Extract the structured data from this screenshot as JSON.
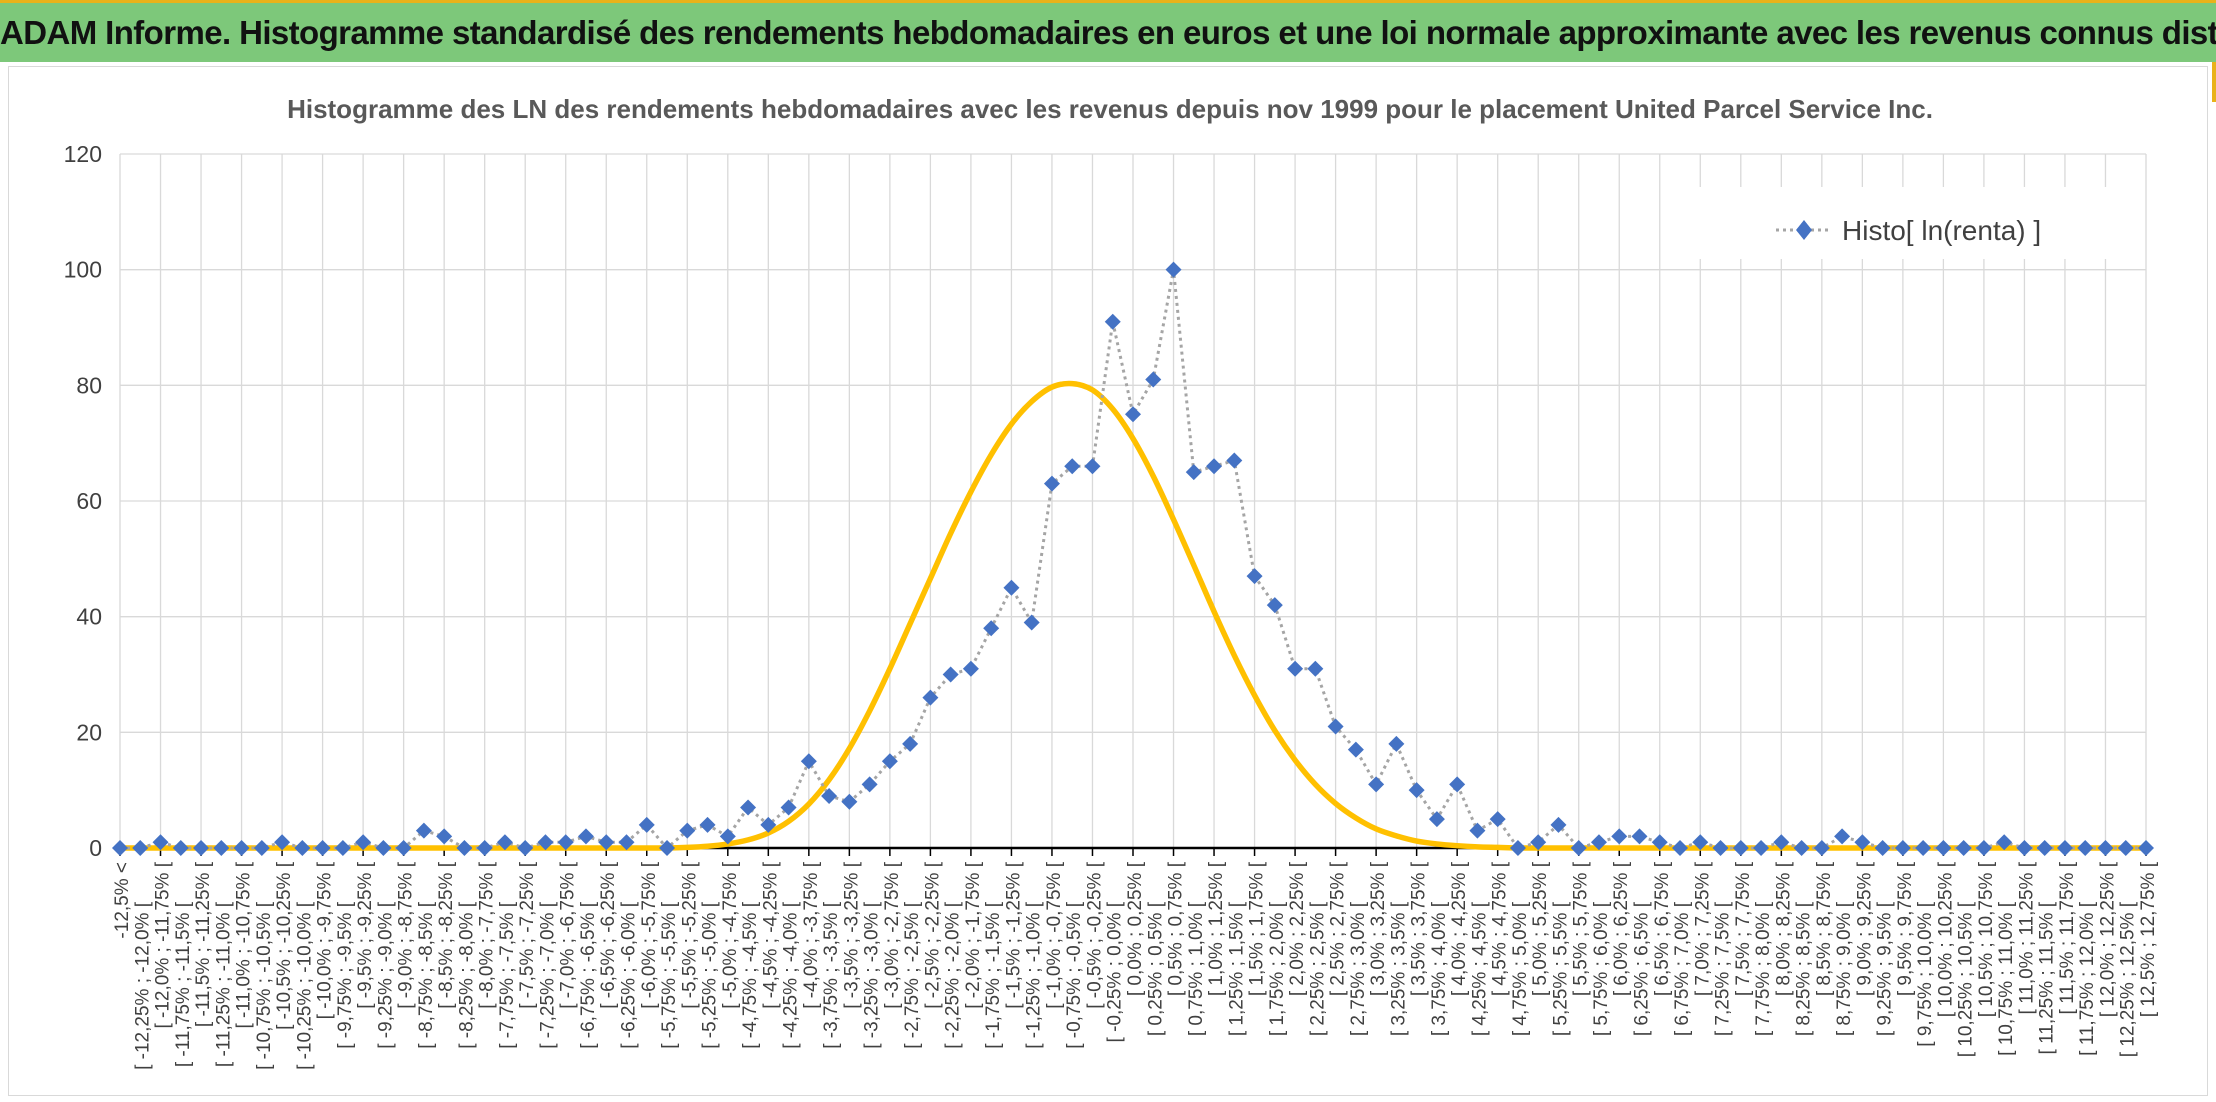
{
  "banner": {
    "title": "ADAM Informe. Histogramme standardisé des rendements hebdomadaires en euros et une loi normale approximante avec les revenus connus distribués"
  },
  "colors": {
    "banner_bg": "#7dc87a",
    "banner_accent": "#e9b21a",
    "histogram_marker": "#4472c4",
    "histogram_line": "#a5a5a5",
    "normal_curve": "#ffc000",
    "grid": "#d9d9d9"
  },
  "chart_data": {
    "type": "line",
    "title": "Histogramme des LN des rendements hebdomadaires avec les revenus depuis nov 1999 pour le placement United Parcel Service Inc.",
    "xlabel": "",
    "ylabel": "",
    "ylim": [
      0,
      120
    ],
    "yticks": [
      0,
      20,
      40,
      60,
      80,
      100,
      120
    ],
    "grid": true,
    "legend_position": "top-right",
    "categories": [
      "-12,5% <",
      "[ -12,25% ; -12,0% [",
      "[ -12,0% ; -11,75% [",
      "[ -11,75% ; -11,5% [",
      "[ -11,5% ; -11,25% [",
      "[ -11,25% ; -11,0% [",
      "[ -11,0% ; -10,75% [",
      "[ -10,75% ; -10,5% [",
      "[ -10,5% ; -10,25% [",
      "[ -10,25% ; -10,0% [",
      "[ -10,0% ; -9,75% [",
      "[ -9,75% ; -9,5% [",
      "[ -9,5% ; -9,25% [",
      "[ -9,25% ; -9,0% [",
      "[ -9,0% ; -8,75% [",
      "[ -8,75% ; -8,5% [",
      "[ -8,5% ; -8,25% [",
      "[ -8,25% ; -8,0% [",
      "[ -8,0% ; -7,75% [",
      "[ -7,75% ; -7,5% [",
      "[ -7,5% ; -7,25% [",
      "[ -7,25% ; -7,0% [",
      "[ -7,0% ; -6,75% [",
      "[ -6,75% ; -6,5% [",
      "[ -6,5% ; -6,25% [",
      "[ -6,25% ; -6,0% [",
      "[ -6,0% ; -5,75% [",
      "[ -5,75% ; -5,5% [",
      "[ -5,5% ; -5,25% [",
      "[ -5,25% ; -5,0% [",
      "[ -5,0% ; -4,75% [",
      "[ -4,75% ; -4,5% [",
      "[ -4,5% ; -4,25% [",
      "[ -4,25% ; -4,0% [",
      "[ -4,0% ; -3,75% [",
      "[ -3,75% ; -3,5% [",
      "[ -3,5% ; -3,25% [",
      "[ -3,25% ; -3,0% [",
      "[ -3,0% ; -2,75% [",
      "[ -2,75% ; -2,5% [",
      "[ -2,5% ; -2,25% [",
      "[ -2,25% ; -2,0% [",
      "[ -2,0% ; -1,75% [",
      "[ -1,75% ; -1,5% [",
      "[ -1,5% ; -1,25% [",
      "[ -1,25% ; -1,0% [",
      "[ -1,0% ; -0,75% [",
      "[ -0,75% ; -0,5% [",
      "[ -0,5% ; -0,25% [",
      "[ -0,25% ; 0,0% [",
      "[ 0,0% ; 0,25% [",
      "[ 0,25% ; 0,5% [",
      "[ 0,5% ; 0,75% [",
      "[ 0,75% ; 1,0% [",
      "[ 1,0% ; 1,25% [",
      "[ 1,25% ; 1,5% [",
      "[ 1,5% ; 1,75% [",
      "[ 1,75% ; 2,0% [",
      "[ 2,0% ; 2,25% [",
      "[ 2,25% ; 2,5% [",
      "[ 2,5% ; 2,75% [",
      "[ 2,75% ; 3,0% [",
      "[ 3,0% ; 3,25% [",
      "[ 3,25% ; 3,5% [",
      "[ 3,5% ; 3,75% [",
      "[ 3,75% ; 4,0% [",
      "[ 4,0% ; 4,25% [",
      "[ 4,25% ; 4,5% [",
      "[ 4,5% ; 4,75% [",
      "[ 4,75% ; 5,0% [",
      "[ 5,0% ; 5,25% [",
      "[ 5,25% ; 5,5% [",
      "[ 5,5% ; 5,75% [",
      "[ 5,75% ; 6,0% [",
      "[ 6,0% ; 6,25% [",
      "[ 6,25% ; 6,5% [",
      "[ 6,5% ; 6,75% [",
      "[ 6,75% ; 7,0% [",
      "[ 7,0% ; 7,25% [",
      "[ 7,25% ; 7,5% [",
      "[ 7,5% ; 7,75% [",
      "[ 7,75% ; 8,0% [",
      "[ 8,0% ; 8,25% [",
      "[ 8,25% ; 8,5% [",
      "[ 8,5% ; 8,75% [",
      "[ 8,75% ; 9,0% [",
      "[ 9,0% ; 9,25% [",
      "[ 9,25% ; 9,5% [",
      "[ 9,5% ; 9,75% [",
      "[ 9,75% ; 10,0% [",
      "[ 10,0% ; 10,25% [",
      "[ 10,25% ; 10,5% [",
      "[ 10,5% ; 10,75% [",
      "[ 10,75% ; 11,0% [",
      "[ 11,0% ; 11,25% [",
      "[ 11,25% ; 11,5% [",
      "[ 11,5% ; 11,75% [",
      "[ 11,75% ; 12,0% [",
      "[ 12,0% ; 12,25% [",
      "[ 12,25% ; 12,5% [",
      "[ 12,5% ; 12,75% ["
    ],
    "series": [
      {
        "name": "Histo[ ln(renta) ]",
        "style": "dotted-line-diamond-markers",
        "values": [
          0,
          0,
          1,
          0,
          0,
          0,
          0,
          0,
          1,
          0,
          0,
          0,
          1,
          0,
          0,
          3,
          2,
          0,
          0,
          1,
          0,
          1,
          1,
          2,
          1,
          1,
          4,
          0,
          3,
          4,
          2,
          7,
          4,
          7,
          15,
          9,
          8,
          11,
          15,
          18,
          26,
          30,
          31,
          38,
          45,
          39,
          63,
          66,
          66,
          91,
          75,
          81,
          100,
          65,
          66,
          67,
          47,
          42,
          31,
          31,
          21,
          17,
          11,
          18,
          10,
          5,
          11,
          3,
          5,
          0,
          1,
          4,
          0,
          1,
          2,
          2,
          1,
          0,
          1,
          0,
          0,
          0,
          1,
          0,
          0,
          2,
          1,
          0,
          0,
          0,
          0,
          0,
          0,
          1,
          0,
          0,
          0,
          0,
          0,
          0,
          0
        ]
      },
      {
        "style": "smooth-line",
        "values": [
          0,
          0,
          0,
          0,
          0,
          0,
          0,
          0,
          0,
          0,
          0,
          0,
          0,
          0,
          0,
          0,
          0,
          0,
          0,
          0,
          0,
          0,
          0,
          0,
          0,
          0,
          0,
          0,
          0.1,
          0.3,
          0.7,
          1.4,
          2.6,
          4.6,
          7.6,
          11.8,
          17.2,
          23.7,
          31.0,
          38.8,
          46.6,
          54.4,
          61.6,
          68.0,
          73.3,
          77.2,
          79.7,
          80.3,
          79.2,
          75.9,
          70.8,
          64.3,
          56.8,
          48.9,
          40.9,
          33.3,
          26.4,
          20.3,
          15.2,
          11.0,
          7.7,
          5.2,
          3.3,
          2.1,
          1.2,
          0.7,
          0.4,
          0.2,
          0.1,
          0,
          0,
          0,
          0,
          0,
          0,
          0,
          0,
          0,
          0,
          0,
          0,
          0,
          0,
          0,
          0,
          0,
          0,
          0,
          0,
          0,
          0,
          0,
          0,
          0,
          0,
          0,
          0,
          0,
          0,
          0,
          0
        ]
      }
    ]
  }
}
